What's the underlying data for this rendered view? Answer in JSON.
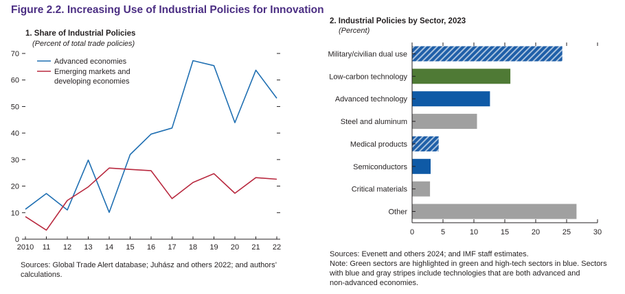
{
  "figure": {
    "title": "Figure 2.2. Increasing Use of Industrial Policies for Innovation"
  },
  "colors": {
    "title": "#4b2e83",
    "advanced": "#1f6fb2",
    "emerging": "#b8283e",
    "green": "#4f7a35",
    "blue": "#0f5aa6",
    "gray": "#a0a0a0",
    "axis": "#231f20"
  },
  "chart_data": [
    {
      "type": "line",
      "title": "1. Share of Industrial Policies",
      "subtitle": "(Percent of total trade policies)",
      "x": [
        "2010",
        "11",
        "12",
        "13",
        "14",
        "15",
        "16",
        "17",
        "18",
        "19",
        "20",
        "21",
        "22"
      ],
      "series": [
        {
          "name": "Advanced economies",
          "values": [
            11.3,
            17.2,
            11.0,
            29.8,
            10.1,
            31.9,
            39.6,
            41.9,
            67.3,
            65.4,
            43.9,
            63.7,
            53.1
          ]
        },
        {
          "name": "Emerging markets and developing economies",
          "values": [
            8.5,
            3.4,
            14.6,
            19.7,
            26.8,
            26.3,
            25.8,
            15.3,
            21.4,
            24.7,
            17.3,
            23.2,
            22.6
          ]
        }
      ],
      "legend": [
        "Advanced economies",
        "Emerging markets and",
        "developing economies"
      ],
      "ylim": [
        0,
        70
      ],
      "yticks": [
        "0",
        "10",
        "20",
        "30",
        "40",
        "50",
        "60",
        "70"
      ],
      "xlabel": "",
      "ylabel": "",
      "source": "Sources: Global Trade Alert database; Juhász and others 2022; and authors’ calculations.",
      "source_lines": [
        "Sources: Global Trade Alert database; Juhász and others 2022; and authors’",
        "calculations."
      ]
    },
    {
      "type": "bar",
      "orientation": "horizontal",
      "title": "2. Industrial Policies by Sector, 2023",
      "subtitle": "(Percent)",
      "categories": [
        "Military/civilian dual use",
        "Low-carbon technology",
        "Advanced technology",
        "Steel and aluminum",
        "Medical products",
        "Semiconductors",
        "Critical materials",
        "Other"
      ],
      "values": [
        24.3,
        15.9,
        12.6,
        10.5,
        4.3,
        3.0,
        2.9,
        26.6
      ],
      "styles": [
        "striped",
        "green",
        "blue",
        "gray",
        "striped",
        "blue",
        "gray",
        "gray"
      ],
      "xlim": [
        0,
        30
      ],
      "xticks": [
        "0",
        "5",
        "10",
        "15",
        "20",
        "25",
        "30"
      ],
      "xlabel": "",
      "ylabel": "",
      "source": "Sources: Evenett and others 2024; and IMF staff estimates.",
      "note": "Note: Green sectors are highlighted in green and high-tech sectors in blue. Sectors with blue and gray stripes include technologies that are both advanced and non-advanced economies.",
      "note_lines": [
        "Note: Green sectors are highlighted in green and high-tech sectors in blue. Sectors",
        "with blue and gray stripes include technologies that are both advanced and",
        "non-advanced economies."
      ]
    }
  ]
}
